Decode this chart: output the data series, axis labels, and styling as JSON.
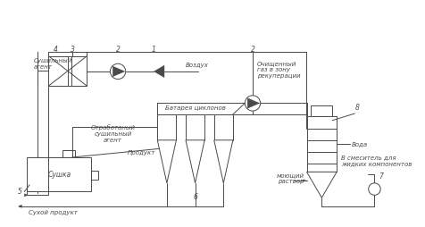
{
  "bg_color": "#ffffff",
  "line_color": "#4a4a4a",
  "labels": {
    "sushilny_agent": "Сушильный\nагент",
    "otrabotanny": "Отработаный\nсушильный\nагент",
    "vozdukh": "Воздух",
    "batarey": "Батарея циклонов",
    "ochischenny": "Очищенный\nгаз в зону\nрекуперации",
    "produkt": "Продукт",
    "sushka": "Сушка",
    "sukhoy": "Сухой продукт",
    "moyaschy": "моющий\nраствор",
    "voda": "Вода",
    "v_smesitel": "В смеситель для\nжидких компонентов"
  }
}
